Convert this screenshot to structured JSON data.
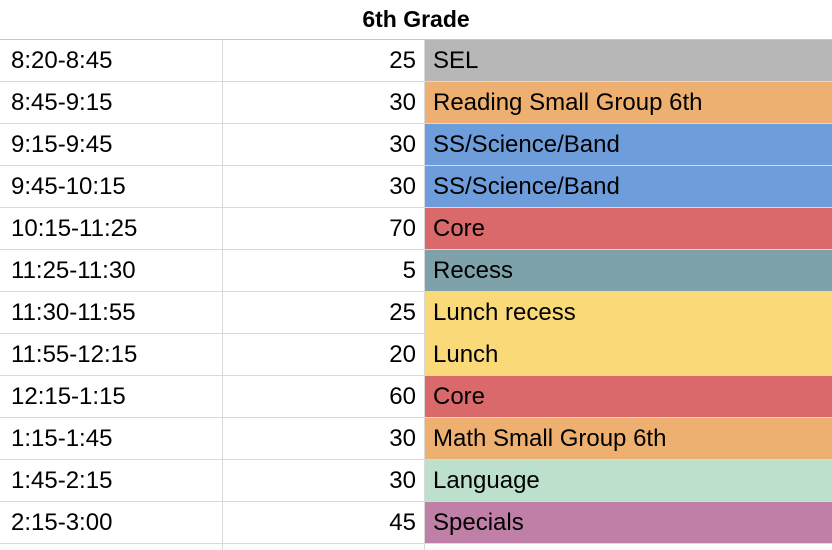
{
  "sheet": {
    "title": "6th Grade",
    "rows": [
      {
        "time": "8:20-8:45",
        "minutes": "25",
        "activity": "SEL",
        "color": "#b7b7b7"
      },
      {
        "time": "8:45-9:15",
        "minutes": "30",
        "activity": "Reading Small Group 6th",
        "color": "#eeb070"
      },
      {
        "time": "9:15-9:45",
        "minutes": "30",
        "activity": "SS/Science/Band",
        "color": "#6d9edb"
      },
      {
        "time": "9:45-10:15",
        "minutes": "30",
        "activity": "SS/Science/Band",
        "color": "#6d9edb"
      },
      {
        "time": "10:15-11:25",
        "minutes": "70",
        "activity": "Core",
        "color": "#d9696b"
      },
      {
        "time": "11:25-11:30",
        "minutes": "5",
        "activity": "Recess",
        "color": "#7ea2aa"
      },
      {
        "time": "11:30-11:55",
        "minutes": "25",
        "activity": "Lunch recess",
        "color": "#f9d978"
      },
      {
        "time": "11:55-12:15",
        "minutes": "20",
        "activity": "Lunch",
        "color": "#f9d978"
      },
      {
        "time": "12:15-1:15",
        "minutes": "60",
        "activity": "Core",
        "color": "#d9696b"
      },
      {
        "time": "1:15-1:45",
        "minutes": "30",
        "activity": "Math Small Group 6th",
        "color": "#eeb070"
      },
      {
        "time": "1:45-2:15",
        "minutes": "30",
        "activity": "Language",
        "color": "#bce0cc"
      },
      {
        "time": "2:15-3:00",
        "minutes": "45",
        "activity": "Specials",
        "color": "#bf7fa6"
      }
    ]
  }
}
